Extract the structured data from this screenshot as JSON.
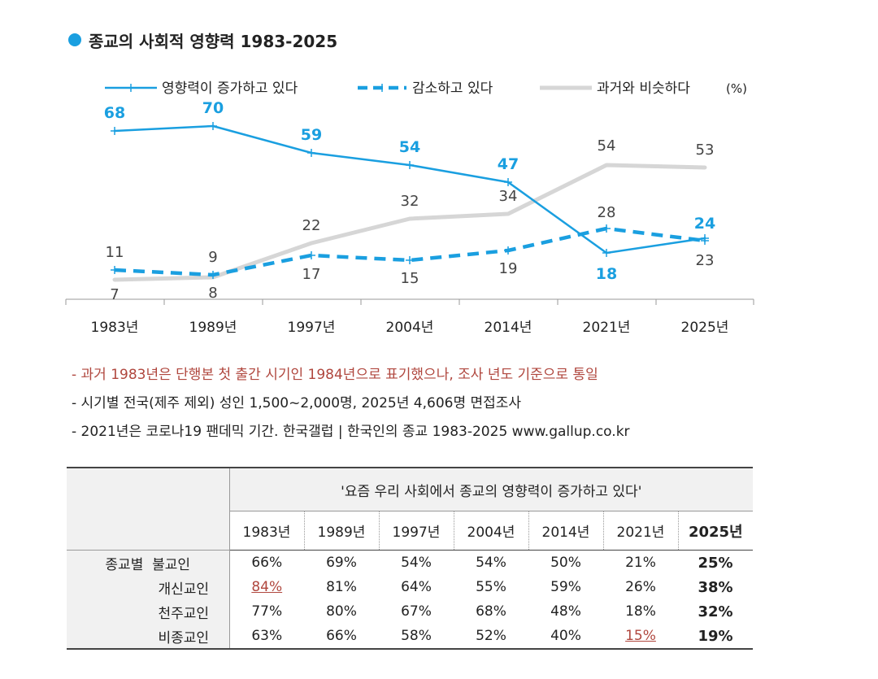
{
  "title": "종교의 사회적 영향력 1983-2025",
  "chart_data": {
    "type": "line",
    "title": "종교의 사회적 영향력 1983-2025",
    "unit": "(%)",
    "categories": [
      "1983년",
      "1989년",
      "1997년",
      "2004년",
      "2014년",
      "2021년",
      "2025년"
    ],
    "series": [
      {
        "name": "영향력이 증가하고 있다",
        "values": [
          68,
          70,
          59,
          54,
          47,
          18,
          24
        ],
        "color": "#1a9fe0",
        "style": "solid"
      },
      {
        "name": "감소하고 있다",
        "values": [
          11,
          9,
          17,
          15,
          19,
          28,
          23
        ],
        "color": "#1a9fe0",
        "style": "dashed"
      },
      {
        "name": "과거와 비슷하다",
        "values": [
          7,
          8,
          22,
          32,
          34,
          54,
          53
        ],
        "color": "#d6d6d6",
        "style": "solid"
      }
    ],
    "ylim": [
      0,
      75
    ],
    "grid": false,
    "legend": "top"
  },
  "notes": [
    "- 과거 1983년은 단행본 첫 출간 시기인 1984년으로 표기했으나, 조사 년도 기준으로 통일",
    "- 시기별 전국(제주 제외) 성인 1,500~2,000명, 2025년 4,606명 면접조사",
    "- 2021년은 코로나19 팬데믹 기간. 한국갤럽 | 한국인의 종교 1983-2025 www.gallup.co.kr"
  ],
  "table": {
    "question": "'요즘 우리 사회에서 종교의 영향력이 증가하고 있다'",
    "group_label": "종교별",
    "years": [
      "1983년",
      "1989년",
      "1997년",
      "2004년",
      "2014년",
      "2021년",
      "2025년"
    ],
    "rows": [
      {
        "label": "불교인",
        "values": [
          "66%",
          "69%",
          "54%",
          "54%",
          "50%",
          "21%",
          "25%"
        ]
      },
      {
        "label": "개신교인",
        "values": [
          "84%",
          "81%",
          "64%",
          "55%",
          "59%",
          "26%",
          "38%"
        ]
      },
      {
        "label": "천주교인",
        "values": [
          "77%",
          "80%",
          "67%",
          "68%",
          "48%",
          "18%",
          "32%"
        ]
      },
      {
        "label": "비종교인",
        "values": [
          "63%",
          "66%",
          "58%",
          "52%",
          "40%",
          "15%",
          "19%"
        ]
      }
    ]
  }
}
